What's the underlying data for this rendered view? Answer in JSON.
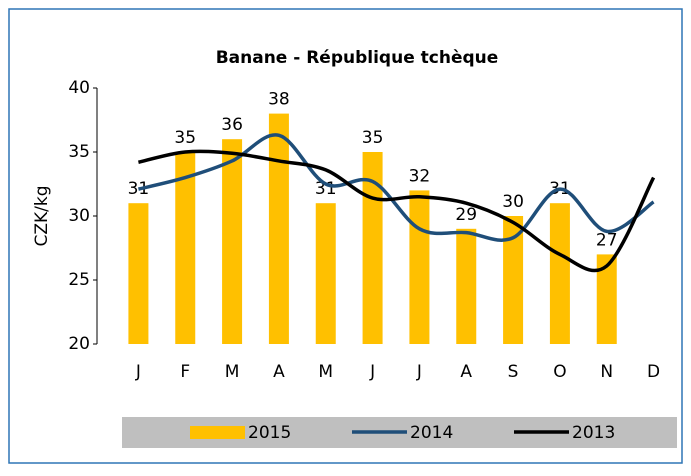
{
  "chart_data": {
    "type": "bar-line",
    "title": "Banane - République tchèque",
    "y_label": "CZK/kg",
    "categories": [
      "J",
      "F",
      "M",
      "A",
      "M",
      "J",
      "J",
      "A",
      "S",
      "O",
      "N",
      "D"
    ],
    "series": [
      {
        "name": "2015",
        "type": "bar",
        "color": "#ffc000",
        "values": [
          31,
          35,
          36,
          38,
          31,
          35,
          32,
          29,
          30,
          31,
          27,
          null
        ]
      },
      {
        "name": "2014",
        "type": "line",
        "color": "#1f4e79",
        "values": [
          32.1,
          33.0,
          34.3,
          36.3,
          32.5,
          32.7,
          29.0,
          28.7,
          28.3,
          32.1,
          28.8,
          31.1
        ]
      },
      {
        "name": "2013",
        "type": "line",
        "color": "#000000",
        "values": [
          34.2,
          35.0,
          34.9,
          34.3,
          33.6,
          31.4,
          31.5,
          31.0,
          29.5,
          27.0,
          26.1,
          33.0
        ]
      }
    ],
    "ylim": [
      20,
      40
    ],
    "yticks": [
      20,
      25,
      30,
      35,
      40
    ]
  }
}
